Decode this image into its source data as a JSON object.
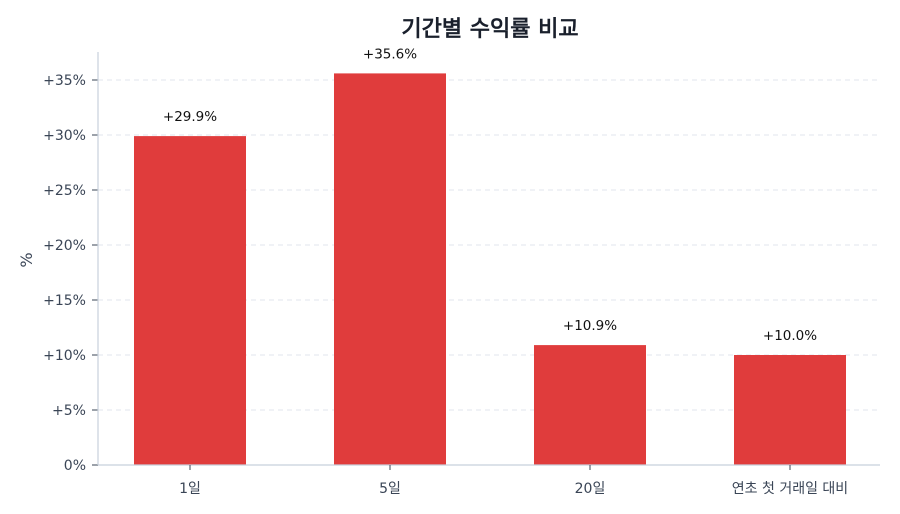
{
  "chart_data": {
    "type": "bar",
    "title": "기간별 수익률 비교",
    "xlabel": "",
    "ylabel": "%",
    "categories": [
      "1일",
      "5일",
      "20일",
      "연초 첫 거래일 대비"
    ],
    "values": [
      29.9,
      35.6,
      10.9,
      10.0
    ],
    "value_labels": [
      "+29.9%",
      "+35.6%",
      "+10.9%",
      "+10.0%"
    ],
    "ylim": [
      0,
      37.5
    ],
    "yticks": [
      0,
      5,
      10,
      15,
      20,
      25,
      30,
      35
    ],
    "ytick_labels": [
      "0%",
      "+5%",
      "+10%",
      "+15%",
      "+20%",
      "+25%",
      "+30%",
      "+35%"
    ],
    "grid": "horizontal dashed",
    "legend": null,
    "colors": {
      "bar": "#e03c3c",
      "grid": "#e2e6ec",
      "axis": "#c8d0dc",
      "title": "#1a202c",
      "text": "#3a4556"
    }
  }
}
